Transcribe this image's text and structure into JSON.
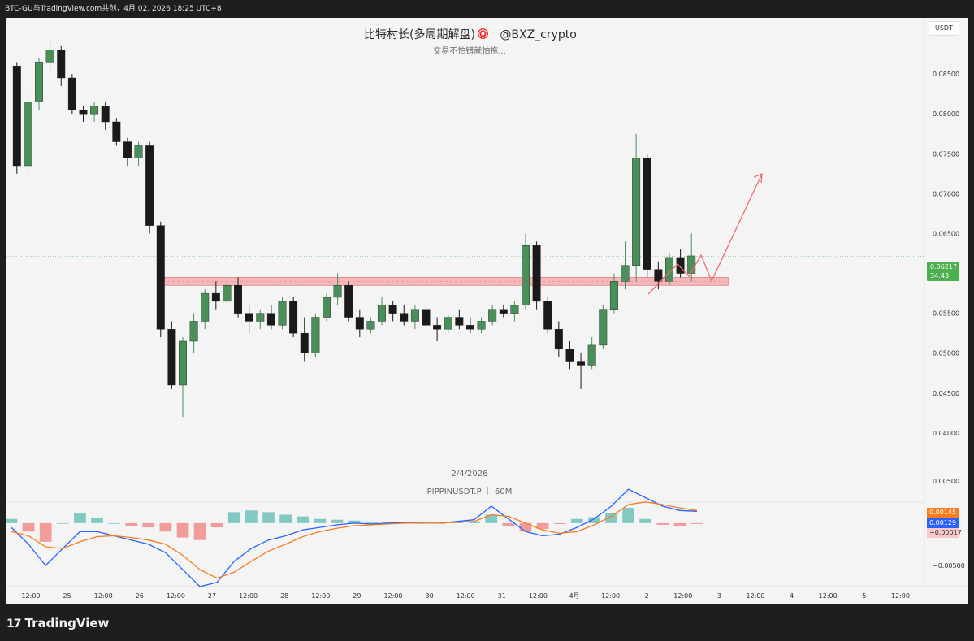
{
  "header": {
    "caption": "BTC-GU与TradingView.com共创，4月 02, 2026 18:25 UTC+8"
  },
  "chart_title": {
    "name": "比特村长(多周期解盘)",
    "handle": "@BXZ_crypto",
    "subtitle": "交易不怕错就怕拖..."
  },
  "watermark": {
    "date": "2/4/2026",
    "symbol": "PIPPINUSDT.P ｜ 60M"
  },
  "currency": "USDT",
  "price_tag": {
    "price": "0.06217",
    "countdown": "34:43"
  },
  "macd_tags": [
    "0.00145",
    "0.00129",
    "−0.00017"
  ],
  "footer": {
    "brand": "TradingView",
    "logo": "17"
  },
  "colors": {
    "up": "#4a8f5a",
    "down": "#1a1a1a",
    "zone": "#f4a7ab",
    "arrow": "#ef6b74",
    "macd": "#2962ff",
    "signal": "#f57c1f",
    "hist_pos": "#26a69a",
    "hist_neg": "#ef5350"
  },
  "chart_data": [
    {
      "type": "candlestick",
      "ylim": [
        0.035,
        0.09
      ],
      "y_ticks": [
        "0.04000",
        "0.04500",
        "0.05000",
        "0.05500",
        "0.06000",
        "0.06500",
        "0.07000",
        "0.07500",
        "0.08000",
        "0.08500"
      ],
      "x_ticks": [
        "12:00",
        "25",
        "12:00",
        "26",
        "12:00",
        "27",
        "12:00",
        "28",
        "12:00",
        "29",
        "12:00",
        "30",
        "12:00",
        "31",
        "12:00",
        "4月",
        "12:00",
        "2",
        "12:00",
        "3",
        "12:00",
        "4",
        "12:00",
        "5",
        "12:00"
      ],
      "candles_approx": [
        [
          0.086,
          0.0865,
          0.0725,
          0.0735
        ],
        [
          0.0735,
          0.0825,
          0.0725,
          0.0815
        ],
        [
          0.0815,
          0.087,
          0.0805,
          0.0865
        ],
        [
          0.0865,
          0.089,
          0.0855,
          0.088
        ],
        [
          0.088,
          0.0885,
          0.0835,
          0.0845
        ],
        [
          0.0845,
          0.085,
          0.08,
          0.0805
        ],
        [
          0.0805,
          0.081,
          0.079,
          0.08
        ],
        [
          0.08,
          0.0815,
          0.079,
          0.081
        ],
        [
          0.081,
          0.0815,
          0.078,
          0.079
        ],
        [
          0.079,
          0.0795,
          0.076,
          0.0765
        ],
        [
          0.0765,
          0.077,
          0.0735,
          0.0745
        ],
        [
          0.0745,
          0.0765,
          0.0735,
          0.076
        ],
        [
          0.076,
          0.0765,
          0.065,
          0.066
        ],
        [
          0.066,
          0.0665,
          0.052,
          0.053
        ],
        [
          0.053,
          0.054,
          0.0455,
          0.046
        ],
        [
          0.046,
          0.052,
          0.042,
          0.0515
        ],
        [
          0.0515,
          0.055,
          0.05,
          0.054
        ],
        [
          0.054,
          0.058,
          0.053,
          0.0575
        ],
        [
          0.0575,
          0.059,
          0.0555,
          0.0565
        ],
        [
          0.0565,
          0.06,
          0.056,
          0.0585
        ],
        [
          0.0585,
          0.0595,
          0.0545,
          0.055
        ],
        [
          0.055,
          0.056,
          0.0525,
          0.054
        ],
        [
          0.054,
          0.0555,
          0.053,
          0.055
        ],
        [
          0.055,
          0.056,
          0.053,
          0.0535
        ],
        [
          0.0535,
          0.057,
          0.053,
          0.0565
        ],
        [
          0.0565,
          0.057,
          0.052,
          0.0525
        ],
        [
          0.0525,
          0.0545,
          0.049,
          0.05
        ],
        [
          0.05,
          0.055,
          0.0495,
          0.0545
        ],
        [
          0.0545,
          0.0575,
          0.054,
          0.057
        ],
        [
          0.057,
          0.06,
          0.056,
          0.0585
        ],
        [
          0.0585,
          0.059,
          0.054,
          0.0545
        ],
        [
          0.0545,
          0.0555,
          0.052,
          0.053
        ],
        [
          0.053,
          0.0545,
          0.0525,
          0.054
        ],
        [
          0.054,
          0.057,
          0.0535,
          0.056
        ],
        [
          0.056,
          0.0565,
          0.054,
          0.055
        ],
        [
          0.055,
          0.056,
          0.0535,
          0.054
        ],
        [
          0.054,
          0.056,
          0.053,
          0.0555
        ],
        [
          0.0555,
          0.056,
          0.053,
          0.0535
        ],
        [
          0.0535,
          0.0545,
          0.0515,
          0.053
        ],
        [
          0.053,
          0.055,
          0.0525,
          0.0545
        ],
        [
          0.0545,
          0.0555,
          0.053,
          0.0535
        ],
        [
          0.0535,
          0.0545,
          0.0525,
          0.053
        ],
        [
          0.053,
          0.0545,
          0.0525,
          0.054
        ],
        [
          0.054,
          0.056,
          0.0535,
          0.0555
        ],
        [
          0.0555,
          0.056,
          0.0545,
          0.055
        ],
        [
          0.055,
          0.0565,
          0.054,
          0.056
        ],
        [
          0.056,
          0.065,
          0.0555,
          0.0635
        ],
        [
          0.0635,
          0.064,
          0.0555,
          0.0565
        ],
        [
          0.0565,
          0.057,
          0.0525,
          0.053
        ],
        [
          0.053,
          0.054,
          0.0495,
          0.0505
        ],
        [
          0.0505,
          0.0515,
          0.048,
          0.049
        ],
        [
          0.049,
          0.05,
          0.0455,
          0.0485
        ],
        [
          0.0485,
          0.052,
          0.048,
          0.051
        ],
        [
          0.051,
          0.056,
          0.0505,
          0.0555
        ],
        [
          0.0555,
          0.06,
          0.055,
          0.059
        ],
        [
          0.059,
          0.064,
          0.058,
          0.061
        ],
        [
          0.061,
          0.0775,
          0.059,
          0.0745
        ],
        [
          0.0745,
          0.075,
          0.0595,
          0.0605
        ],
        [
          0.0605,
          0.0615,
          0.058,
          0.059
        ],
        [
          0.059,
          0.0625,
          0.0585,
          0.062
        ],
        [
          0.062,
          0.063,
          0.0595,
          0.06
        ],
        [
          0.06,
          0.065,
          0.059,
          0.0622
        ]
      ],
      "resistance_zone": [
        0.0585,
        0.0595
      ],
      "projection_arrow": true,
      "last_price": 0.06217
    },
    {
      "type": "line",
      "name": "MACD",
      "ylim": [
        -0.0075,
        0.0045
      ],
      "y_ticks": [
        "0.00500",
        "−0.00500"
      ],
      "series": [
        {
          "values": [
            -0.0005,
            -0.0025,
            -0.005,
            -0.003,
            -0.001,
            -0.001,
            -0.0015,
            -0.002,
            -0.0025,
            -0.0035,
            -0.0055,
            -0.0075,
            -0.007,
            -0.0045,
            -0.003,
            -0.002,
            -0.0015,
            -0.0008,
            -0.0005,
            -0.0002,
            0.0,
            -0.0001,
            0.0,
            0.0001,
            0.0,
            0.0,
            0.0002,
            0.0004,
            0.002,
            0.0005,
            -0.001,
            -0.0015,
            -0.0013,
            -0.0005,
            0.0005,
            0.002,
            0.004,
            0.003,
            0.002,
            0.0015,
            0.0014
          ]
        },
        {
          "values": [
            -0.001,
            -0.0015,
            -0.0028,
            -0.003,
            -0.0022,
            -0.0016,
            -0.0015,
            -0.0017,
            -0.002,
            -0.0025,
            -0.0038,
            -0.0055,
            -0.0065,
            -0.0058,
            -0.0045,
            -0.0033,
            -0.0025,
            -0.0016,
            -0.001,
            -0.0006,
            -0.0003,
            -0.0002,
            -0.0001,
            0.0,
            0.0,
            0.0,
            0.0001,
            0.0002,
            0.001,
            0.0008,
            0.0,
            -0.0008,
            -0.0012,
            -0.001,
            -0.0002,
            0.0008,
            0.0022,
            0.0025,
            0.0022,
            0.0018,
            0.0015
          ]
        }
      ]
    }
  ]
}
